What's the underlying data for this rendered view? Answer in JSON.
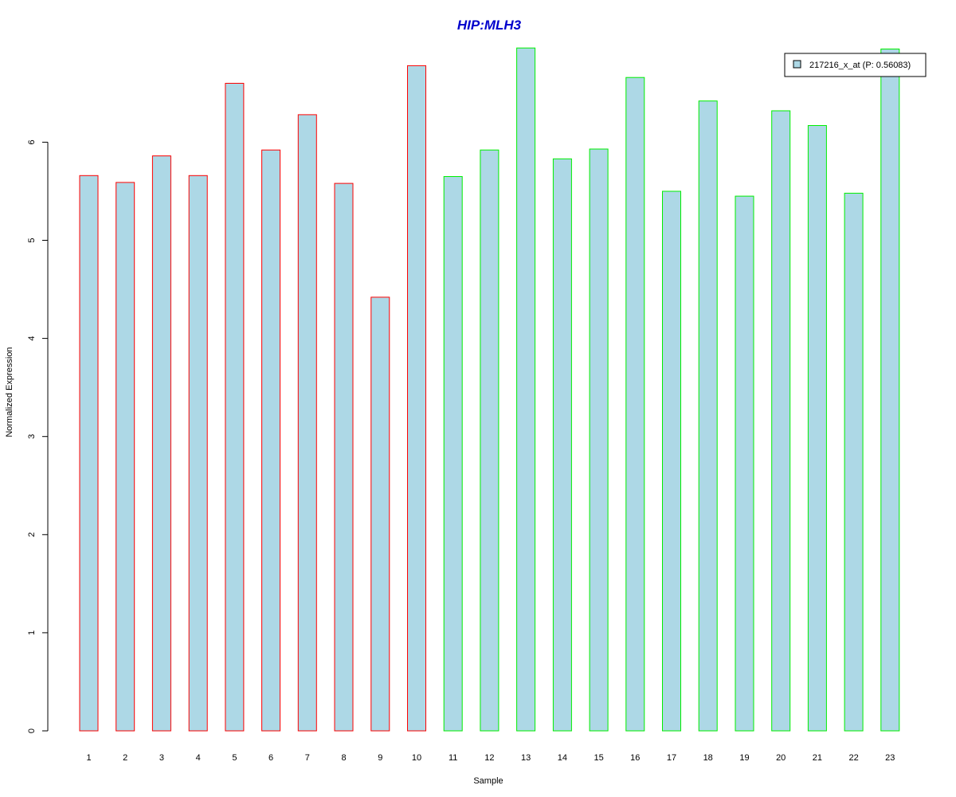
{
  "chart_data": {
    "type": "bar",
    "title": "HIP:MLH3",
    "xlabel": "Sample",
    "ylabel": "Normalized Expression",
    "categories": [
      "1",
      "2",
      "3",
      "4",
      "5",
      "6",
      "7",
      "8",
      "9",
      "10",
      "11",
      "12",
      "13",
      "14",
      "15",
      "16",
      "17",
      "18",
      "19",
      "20",
      "21",
      "22",
      "23"
    ],
    "series": [
      {
        "name": "217216_x_at (P: 0.56083)",
        "values": [
          5.66,
          5.59,
          5.86,
          5.66,
          6.6,
          5.92,
          6.28,
          5.58,
          4.42,
          6.78,
          5.65,
          5.92,
          6.96,
          5.83,
          5.93,
          6.66,
          5.5,
          6.42,
          5.45,
          6.32,
          6.17,
          5.48,
          6.95
        ]
      }
    ],
    "group_border_colors": [
      "#ff0000",
      "#ff0000",
      "#ff0000",
      "#ff0000",
      "#ff0000",
      "#ff0000",
      "#ff0000",
      "#ff0000",
      "#ff0000",
      "#ff0000",
      "#00ee00",
      "#00ee00",
      "#00ee00",
      "#00ee00",
      "#00ee00",
      "#00ee00",
      "#00ee00",
      "#00ee00",
      "#00ee00",
      "#00ee00",
      "#00ee00",
      "#00ee00",
      "#00ee00"
    ],
    "yticks": [
      0,
      1,
      2,
      3,
      4,
      5,
      6
    ],
    "ylim": [
      0,
      6.96
    ],
    "grid": false,
    "legend_position": "top-right",
    "colors": {
      "bar_fill": "#add8e6",
      "title": "#0000cc",
      "legend_border": "#000000"
    }
  }
}
